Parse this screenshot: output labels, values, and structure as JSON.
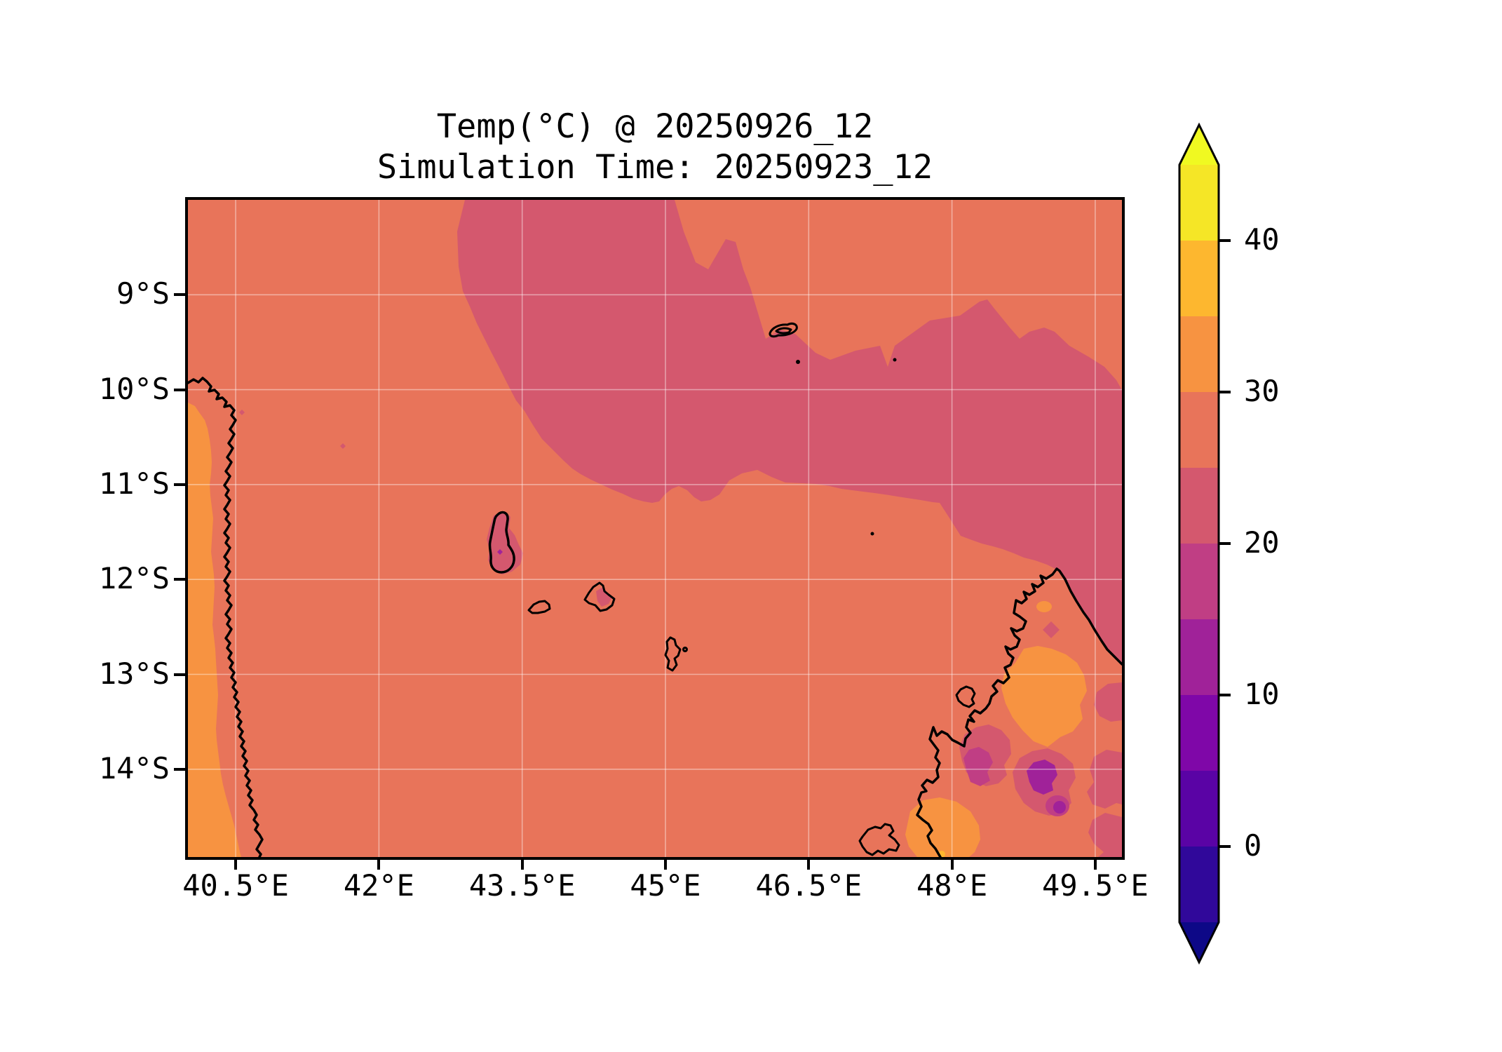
{
  "title": {
    "line1": "Temp(°C) @ 20250926_12",
    "line2": "Simulation Time: 20250923_12"
  },
  "axes": {
    "x": {
      "ticks": [
        {
          "label": "40.5°E",
          "lon": 40.5
        },
        {
          "label": "42°E",
          "lon": 42.0
        },
        {
          "label": "43.5°E",
          "lon": 43.5
        },
        {
          "label": "45°E",
          "lon": 45.0
        },
        {
          "label": "46.5°E",
          "lon": 46.5
        },
        {
          "label": "48°E",
          "lon": 48.0
        },
        {
          "label": "49.5°E",
          "lon": 49.5
        }
      ]
    },
    "y": {
      "ticks": [
        {
          "label": "9°S",
          "lat": 9
        },
        {
          "label": "10°S",
          "lat": 10
        },
        {
          "label": "11°S",
          "lat": 11
        },
        {
          "label": "12°S",
          "lat": 12
        },
        {
          "label": "13°S",
          "lat": 13
        },
        {
          "label": "14°S",
          "lat": 14
        }
      ]
    }
  },
  "colorbar": {
    "units": "°C",
    "ticks": [
      {
        "label": "40",
        "value": 40
      },
      {
        "label": "30",
        "value": 30
      },
      {
        "label": "20",
        "value": 20
      },
      {
        "label": "10",
        "value": 10
      },
      {
        "label": "0",
        "value": 0
      }
    ],
    "bands": [
      {
        "range": "40–45",
        "color": "#f5e626"
      },
      {
        "range": "35–40",
        "color": "#fdb72f"
      },
      {
        "range": "30–35",
        "color": "#f79341"
      },
      {
        "range": "25–30",
        "color": "#e8745a"
      },
      {
        "range": "20–25",
        "color": "#d4586e"
      },
      {
        "range": "15–20",
        "color": "#c03e84"
      },
      {
        "range": "10–15",
        "color": "#a02299"
      },
      {
        "range": "5–10",
        "color": "#7f07a8"
      },
      {
        "range": "0–5",
        "color": "#5a03a5"
      },
      {
        "range": "-5–0",
        "color": "#30089a"
      }
    ],
    "over_color": "#f0f921",
    "under_color": "#0d0887"
  },
  "map": {
    "coastline_color": "#000000",
    "gridline_color": "rgba(255,255,255,0.42)",
    "palette": {
      "t10_15": "#a02299",
      "t15_20": "#c03e84",
      "t20_25": "#d4586e",
      "t25_30": "#e8745a",
      "t30_35": "#f79341",
      "t35_40": "#fdb72f"
    }
  },
  "chart_data": {
    "type": "heatmap",
    "subtype": "filled-contour-map",
    "title": "Temp(°C) @ 20250926_12",
    "subtitle": "Simulation Time: 20250923_12",
    "xlabel": "",
    "ylabel": "",
    "x_ticks": [
      "40.5°E",
      "42°E",
      "43.5°E",
      "45°E",
      "46.5°E",
      "48°E",
      "49.5°E"
    ],
    "y_ticks": [
      "9°S",
      "10°S",
      "11°S",
      "12°S",
      "13°S",
      "14°S"
    ],
    "x_range_est": [
      "40°E",
      "49.8°E"
    ],
    "y_range_est": [
      "8°S",
      "14.9°S"
    ],
    "colormap": "plasma",
    "units": "°C",
    "levels": [
      -5,
      0,
      5,
      10,
      15,
      20,
      25,
      30,
      35,
      40,
      45
    ],
    "colorbar_ticks": [
      0,
      10,
      20,
      30,
      40
    ],
    "extend": "both",
    "grid": true,
    "legend_position": "right-colorbar",
    "regions": [
      {
        "area": "open ocean over most of the domain",
        "temp_c": "25–30"
      },
      {
        "area": "broad diagonal ocean band from top-center (≈43°E,8°S) east-southeast to Madagascar north coast",
        "temp_c": "20–25"
      },
      {
        "area": "northeast-corner ocean (north of the cool band)",
        "temp_c": "25–30"
      },
      {
        "area": "African coastal land interior along west edge (Tanzania/Mozambique coast)",
        "temp_c": "30–35"
      },
      {
        "area": "African nearshore land strip just inside the coastline",
        "temp_c": "25–30"
      },
      {
        "area": "Grande Comore island and surrounding halo",
        "temp_c": "20–25"
      },
      {
        "area": "Grande Comore summit dot",
        "temp_c": "10–15"
      },
      {
        "area": "Anjouan island interior",
        "temp_c": "20–25"
      },
      {
        "area": "Mohéli and Mayotte islands",
        "temp_c": "25–30"
      },
      {
        "area": "northwest Madagascar lowlands",
        "temp_c": "30–35"
      },
      {
        "area": "north Madagascar interior patches",
        "temp_c": "20–25 and 15–20"
      },
      {
        "area": "north Madagascar highland spots",
        "temp_c": "10–15"
      }
    ]
  }
}
